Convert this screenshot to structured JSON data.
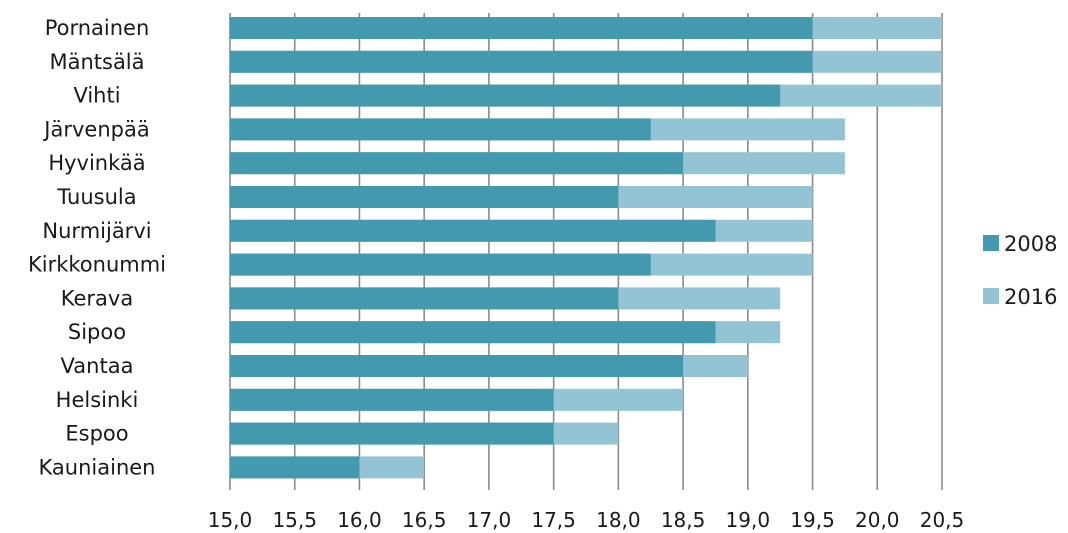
{
  "chart_data": {
    "type": "bar",
    "orientation": "horizontal",
    "stacked": false,
    "overlay": true,
    "categories": [
      "Pornainen",
      "Mäntsälä",
      "Vihti",
      "Järvenpää",
      "Hyvinkää",
      "Tuusula",
      "Nurmijärvi",
      "Kirkkonummi",
      "Kerava",
      "Sipoo",
      "Vantaa",
      "Helsinki",
      "Espoo",
      "Kauniainen"
    ],
    "series": [
      {
        "name": "2008",
        "color": "#4399ae",
        "values": [
          19.5,
          19.5,
          19.25,
          18.25,
          18.5,
          18.0,
          18.75,
          18.25,
          18.0,
          18.75,
          18.5,
          17.5,
          17.5,
          16.0
        ]
      },
      {
        "name": "2016",
        "color": "#93c4d4",
        "values": [
          20.5,
          20.5,
          20.5,
          19.75,
          19.75,
          19.5,
          19.5,
          19.5,
          19.25,
          19.25,
          19.0,
          18.5,
          18.0,
          16.5
        ]
      }
    ],
    "xlim": [
      15.0,
      20.5
    ],
    "xticks": [
      "15,0",
      "15,5",
      "16,0",
      "16,5",
      "17,0",
      "17,5",
      "18,0",
      "18,5",
      "19,0",
      "19,5",
      "20,0",
      "20,5"
    ],
    "grid": "vertical",
    "legend": "right",
    "title": "",
    "xlabel": "",
    "ylabel": ""
  }
}
